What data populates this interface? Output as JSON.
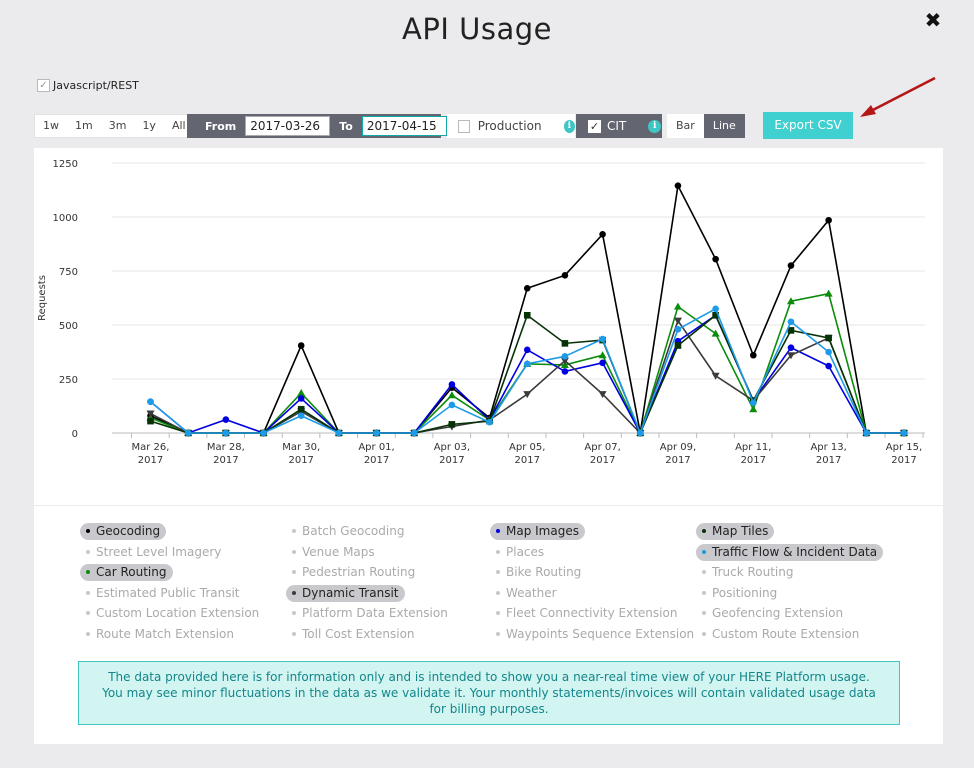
{
  "title": "API Usage",
  "close_label": "✖",
  "api_filter": {
    "label": "Javascript/REST",
    "checked": true
  },
  "range_buttons": [
    "1w",
    "1m",
    "3m",
    "1y",
    "All"
  ],
  "date_range": {
    "from_label": "From",
    "from_value": "2017-03-26",
    "to_label": "To",
    "to_value": "2017-04-15"
  },
  "production": {
    "label": "Production",
    "checked": false
  },
  "cit": {
    "label": "CIT",
    "checked": true
  },
  "chart_types": {
    "bar": "Bar",
    "line": "Line",
    "selected": "Line"
  },
  "export_label": "Export CSV",
  "info_glyph": "i",
  "colors": {
    "Geocoding": "#000000",
    "Car Routing": "#0b8c0b",
    "Map Images": "#0000e0",
    "Dynamic Transit": "#3b3b3b",
    "Map Tiles": "#063206",
    "Traffic Flow & Incident Data": "#1e9be8"
  },
  "chart_data": {
    "type": "line",
    "ylabel": "Requests",
    "xlabel": "",
    "ylim": [
      0,
      1250
    ],
    "yticks": [
      0,
      250,
      500,
      750,
      1000,
      1250
    ],
    "x": [
      "2017-03-26",
      "2017-03-27",
      "2017-03-28",
      "2017-03-29",
      "2017-03-30",
      "2017-03-31",
      "2017-04-01",
      "2017-04-02",
      "2017-04-03",
      "2017-04-04",
      "2017-04-05",
      "2017-04-06",
      "2017-04-07",
      "2017-04-08",
      "2017-04-09",
      "2017-04-10",
      "2017-04-11",
      "2017-04-12",
      "2017-04-13",
      "2017-04-14",
      "2017-04-15"
    ],
    "xtick_labels": [
      [
        "Mar 26,",
        "2017"
      ],
      [
        "Mar 28,",
        "2017"
      ],
      [
        "Mar 30,",
        "2017"
      ],
      [
        "Apr 01,",
        "2017"
      ],
      [
        "Apr 03,",
        "2017"
      ],
      [
        "Apr 05,",
        "2017"
      ],
      [
        "Apr 07,",
        "2017"
      ],
      [
        "Apr 09,",
        "2017"
      ],
      [
        "Apr 11,",
        "2017"
      ],
      [
        "Apr 13,",
        "2017"
      ],
      [
        "Apr 15,",
        "2017"
      ]
    ],
    "series": [
      {
        "name": "Geocoding",
        "marker": "circle",
        "values": [
          80,
          0,
          0,
          0,
          405,
          0,
          0,
          0,
          210,
          70,
          670,
          730,
          920,
          0,
          1145,
          805,
          360,
          775,
          985,
          0,
          0
        ]
      },
      {
        "name": "Car Routing",
        "marker": "triangle",
        "values": [
          70,
          0,
          0,
          0,
          185,
          0,
          0,
          0,
          175,
          60,
          320,
          315,
          360,
          0,
          585,
          460,
          110,
          610,
          645,
          0,
          0
        ]
      },
      {
        "name": "Map Images",
        "marker": "circle",
        "values": [
          145,
          0,
          62,
          0,
          160,
          0,
          0,
          0,
          225,
          60,
          385,
          285,
          325,
          0,
          425,
          545,
          150,
          395,
          310,
          0,
          0
        ]
      },
      {
        "name": "Dynamic Transit",
        "marker": "triangle-down",
        "values": [
          90,
          0,
          0,
          0,
          100,
          0,
          0,
          0,
          30,
          60,
          180,
          335,
          180,
          0,
          520,
          265,
          150,
          360,
          440,
          0,
          0
        ]
      },
      {
        "name": "Map Tiles",
        "marker": "square",
        "values": [
          55,
          0,
          0,
          0,
          110,
          0,
          0,
          0,
          40,
          55,
          545,
          415,
          430,
          0,
          405,
          545,
          150,
          475,
          440,
          0,
          0
        ]
      },
      {
        "name": "Traffic Flow & Incident Data",
        "marker": "circle",
        "values": [
          145,
          0,
          0,
          0,
          80,
          0,
          0,
          0,
          130,
          50,
          320,
          355,
          435,
          0,
          480,
          575,
          140,
          515,
          375,
          0,
          0
        ]
      }
    ]
  },
  "legend": [
    {
      "label": "Geocoding",
      "active": true,
      "dot": "#000000"
    },
    {
      "label": "Batch Geocoding",
      "active": false
    },
    {
      "label": "Map Images",
      "active": true,
      "dot": "#0000e0"
    },
    {
      "label": "Map Tiles",
      "active": true,
      "dot": "#063206"
    },
    {
      "label": "Street Level Imagery",
      "active": false
    },
    {
      "label": "Venue Maps",
      "active": false
    },
    {
      "label": "Places",
      "active": false
    },
    {
      "label": "Traffic Flow & Incident Data",
      "active": true,
      "dot": "#1e9be8"
    },
    {
      "label": "Car Routing",
      "active": true,
      "dot": "#0b8c0b"
    },
    {
      "label": "Pedestrian Routing",
      "active": false
    },
    {
      "label": "Bike Routing",
      "active": false
    },
    {
      "label": "Truck Routing",
      "active": false
    },
    {
      "label": "Estimated Public Transit",
      "active": false
    },
    {
      "label": "Dynamic Transit",
      "active": true,
      "dot": "#3b3b3b"
    },
    {
      "label": "Weather",
      "active": false
    },
    {
      "label": "Positioning",
      "active": false
    },
    {
      "label": "Custom Location Extension",
      "active": false
    },
    {
      "label": "Platform Data Extension",
      "active": false
    },
    {
      "label": "Fleet Connectivity Extension",
      "active": false
    },
    {
      "label": "Geofencing Extension",
      "active": false
    },
    {
      "label": "Route Match Extension",
      "active": false
    },
    {
      "label": "Toll Cost Extension",
      "active": false
    },
    {
      "label": "Waypoints Sequence Extension",
      "active": false
    },
    {
      "label": "Custom Route Extension",
      "active": false
    }
  ],
  "notice": "The data provided here is for information only and is intended to show you a near-real time view of your HERE Platform usage. You may see minor fluctuations in the data as we validate it. Your monthly statements/invoices will contain validated usage data for billing purposes."
}
